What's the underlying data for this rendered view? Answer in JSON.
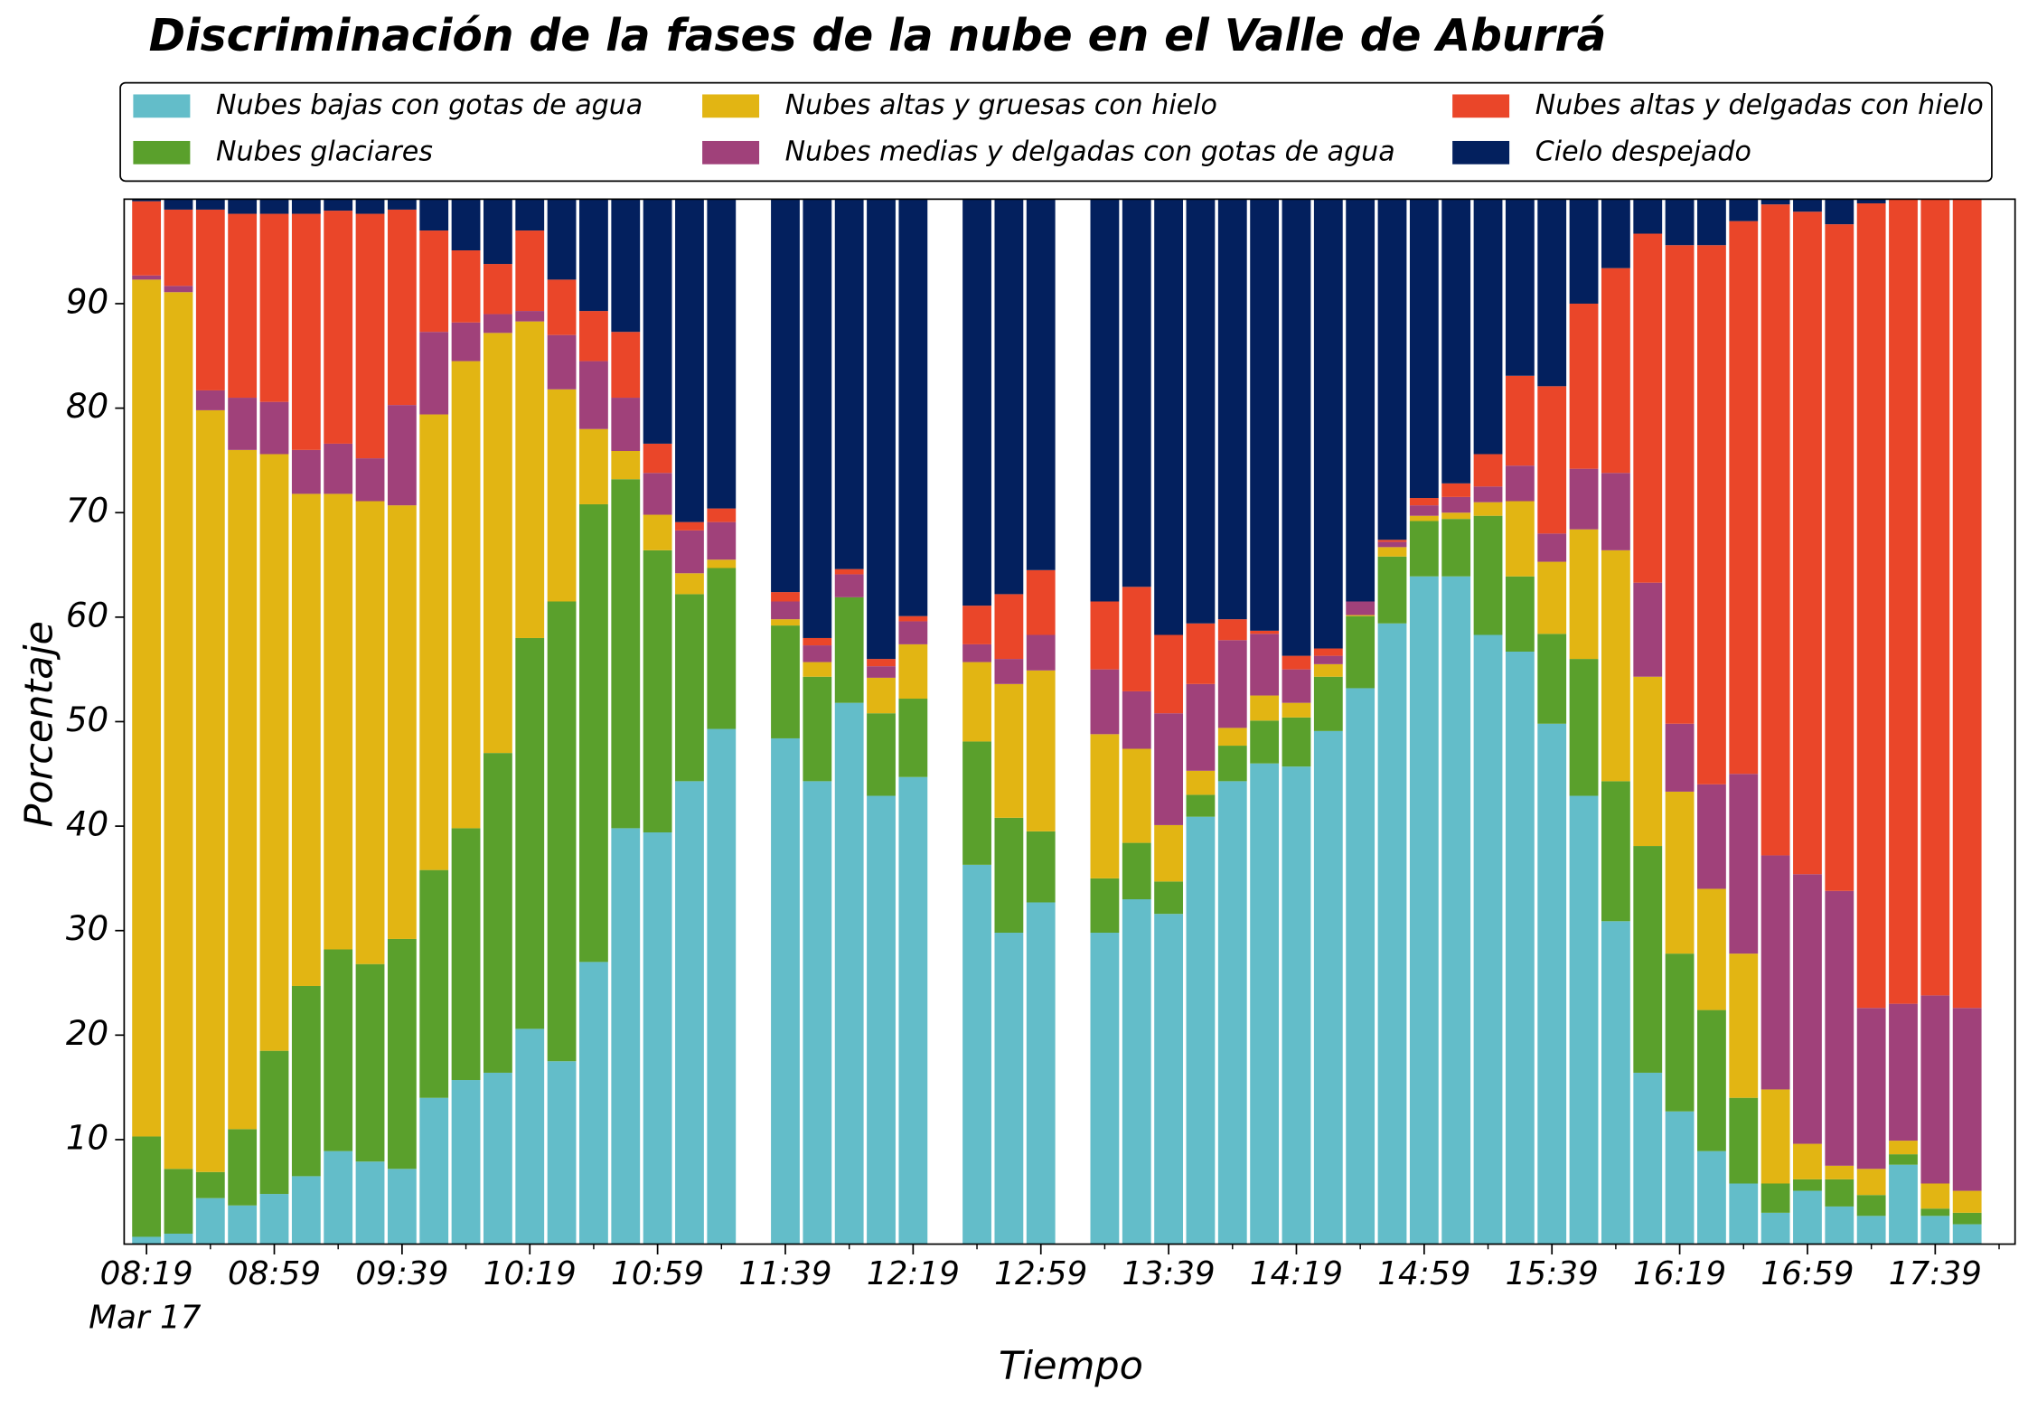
{
  "chart_data": {
    "type": "stacked_bar",
    "title": "Discriminación de la fases de la nube en el Valle de Aburrá",
    "xlabel": "Tiempo",
    "ylabel": "Porcentaje",
    "x_date": "Mar 17",
    "x": [
      "08:19",
      "08:29",
      "08:39",
      "08:49",
      "08:59",
      "09:09",
      "09:19",
      "09:29",
      "09:39",
      "09:49",
      "09:59",
      "10:09",
      "10:19",
      "10:29",
      "10:39",
      "10:49",
      "10:59",
      "11:09",
      "11:19",
      "11:39",
      "11:49",
      "11:59",
      "12:09",
      "12:19",
      "12:39",
      "12:49",
      "12:59",
      "13:19",
      "13:29",
      "13:39",
      "13:49",
      "13:59",
      "14:09",
      "14:19",
      "14:29",
      "14:39",
      "14:49",
      "14:59",
      "15:09",
      "15:19",
      "15:29",
      "15:39",
      "15:49",
      "15:59",
      "16:09",
      "16:19",
      "16:29",
      "16:39",
      "16:49",
      "16:59",
      "17:09",
      "17:19",
      "17:29",
      "17:39",
      "17:49"
    ],
    "xlim": [
      "08:12",
      "18:04"
    ],
    "xticks": [
      "08:19",
      "08:59",
      "09:39",
      "10:19",
      "10:59",
      "11:39",
      "12:19",
      "12:59",
      "13:39",
      "14:19",
      "14:59",
      "15:39",
      "16:19",
      "16:59",
      "17:39"
    ],
    "xminorticks": [
      "08:39",
      "09:19",
      "09:59",
      "10:39",
      "11:19",
      "11:59",
      "12:39",
      "13:19",
      "13:59",
      "14:39",
      "15:19",
      "15:59",
      "16:39",
      "17:19",
      "17:59"
    ],
    "ylim": [
      0,
      100
    ],
    "yticks": [
      10,
      20,
      30,
      40,
      50,
      60,
      70,
      80,
      90
    ],
    "series": [
      {
        "name": "Nubes bajas con gotas de agua",
        "color": "#63bdc9",
        "values": [
          0.7,
          1.0,
          4.4,
          3.7,
          4.8,
          6.5,
          8.9,
          7.9,
          7.2,
          14.0,
          15.7,
          16.4,
          20.6,
          17.5,
          27.0,
          39.8,
          39.4,
          44.3,
          49.3,
          48.4,
          44.3,
          51.8,
          42.9,
          44.7,
          36.3,
          29.8,
          32.7,
          29.8,
          33.0,
          31.6,
          40.9,
          44.3,
          46.0,
          45.7,
          49.1,
          53.2,
          59.4,
          63.9,
          63.9,
          58.3,
          56.7,
          49.8,
          42.9,
          30.9,
          16.4,
          12.7,
          8.9,
          5.8,
          3.0,
          5.1,
          3.6,
          2.7,
          7.6,
          2.7,
          1.9
        ]
      },
      {
        "name": "Nubes glaciares",
        "color": "#5aa02c",
        "values": [
          9.6,
          6.2,
          2.5,
          7.3,
          13.7,
          18.2,
          19.3,
          18.9,
          22.0,
          21.8,
          24.1,
          30.6,
          37.4,
          44.0,
          43.8,
          33.4,
          27.0,
          17.9,
          15.4,
          10.8,
          10.0,
          10.1,
          7.9,
          7.5,
          11.8,
          11.0,
          6.8,
          5.2,
          5.4,
          3.1,
          2.1,
          3.4,
          4.1,
          4.7,
          5.2,
          6.9,
          6.4,
          5.3,
          5.5,
          11.4,
          7.2,
          8.6,
          13.1,
          13.4,
          21.7,
          15.1,
          13.5,
          8.2,
          2.8,
          1.1,
          2.6,
          2.0,
          1.0,
          0.7,
          1.1
        ]
      },
      {
        "name": "Nubes altas y gruesas con hielo",
        "color": "#e2b513",
        "values": [
          82.0,
          83.9,
          72.9,
          65.0,
          57.1,
          47.1,
          43.6,
          44.3,
          41.5,
          43.6,
          44.7,
          40.2,
          30.3,
          20.3,
          7.2,
          2.7,
          3.4,
          2.0,
          0.8,
          0.6,
          1.4,
          0.0,
          3.4,
          5.2,
          7.6,
          12.8,
          15.4,
          13.8,
          9.0,
          5.4,
          2.3,
          1.7,
          2.4,
          1.4,
          1.2,
          0.1,
          0.9,
          0.5,
          0.6,
          1.3,
          7.2,
          6.9,
          12.4,
          22.1,
          16.2,
          15.5,
          11.6,
          13.8,
          9.0,
          3.4,
          1.3,
          2.5,
          1.3,
          2.4,
          2.1
        ]
      },
      {
        "name": "Nubes medias y delgadas con gotas de agua",
        "color": "#a0417a",
        "values": [
          0.4,
          0.6,
          1.9,
          5.0,
          5.0,
          4.2,
          4.8,
          4.1,
          9.6,
          7.9,
          3.7,
          1.8,
          1.0,
          5.2,
          6.5,
          5.1,
          4.0,
          4.1,
          3.6,
          1.7,
          1.6,
          2.2,
          1.1,
          2.2,
          1.7,
          2.4,
          3.4,
          6.2,
          5.5,
          10.7,
          8.3,
          8.4,
          5.9,
          3.2,
          0.8,
          1.3,
          0.5,
          1.0,
          1.5,
          1.5,
          3.4,
          2.7,
          5.8,
          7.4,
          9.0,
          6.5,
          10.0,
          17.2,
          22.4,
          25.8,
          26.3,
          15.4,
          13.1,
          18.0,
          17.5
        ]
      },
      {
        "name": "Nubes altas y delgadas con hielo",
        "color": "#ea4629",
        "values": [
          7.1,
          7.3,
          17.3,
          17.6,
          18.0,
          22.6,
          22.3,
          23.4,
          18.7,
          9.7,
          6.9,
          4.8,
          7.7,
          5.3,
          4.8,
          6.3,
          2.8,
          0.8,
          1.3,
          0.9,
          0.7,
          0.5,
          0.7,
          0.5,
          3.7,
          6.2,
          6.2,
          6.5,
          10.0,
          7.5,
          5.8,
          2.0,
          0.3,
          1.3,
          0.7,
          0.0,
          0.2,
          0.7,
          1.3,
          3.1,
          8.6,
          14.1,
          15.8,
          19.6,
          33.4,
          45.8,
          51.6,
          52.9,
          62.3,
          63.4,
          63.8,
          77.0,
          77.0,
          76.2,
          77.4
        ]
      },
      {
        "name": "Cielo despejado",
        "color": "#03205e",
        "values": [
          0.2,
          1.0,
          1.0,
          1.4,
          1.4,
          1.4,
          1.1,
          1.4,
          1.0,
          3.0,
          4.9,
          6.2,
          3.0,
          7.7,
          10.7,
          12.7,
          23.4,
          30.9,
          29.6,
          37.6,
          42.0,
          35.4,
          44.0,
          39.9,
          38.9,
          37.8,
          35.5,
          38.5,
          37.1,
          41.7,
          40.6,
          40.2,
          41.3,
          43.7,
          43.0,
          38.5,
          32.6,
          28.6,
          27.2,
          24.4,
          16.9,
          17.9,
          10.0,
          6.6,
          3.3,
          4.4,
          4.4,
          2.1,
          0.5,
          1.2,
          2.4,
          0.4,
          0.0,
          0.0,
          0.0
        ]
      }
    ]
  }
}
